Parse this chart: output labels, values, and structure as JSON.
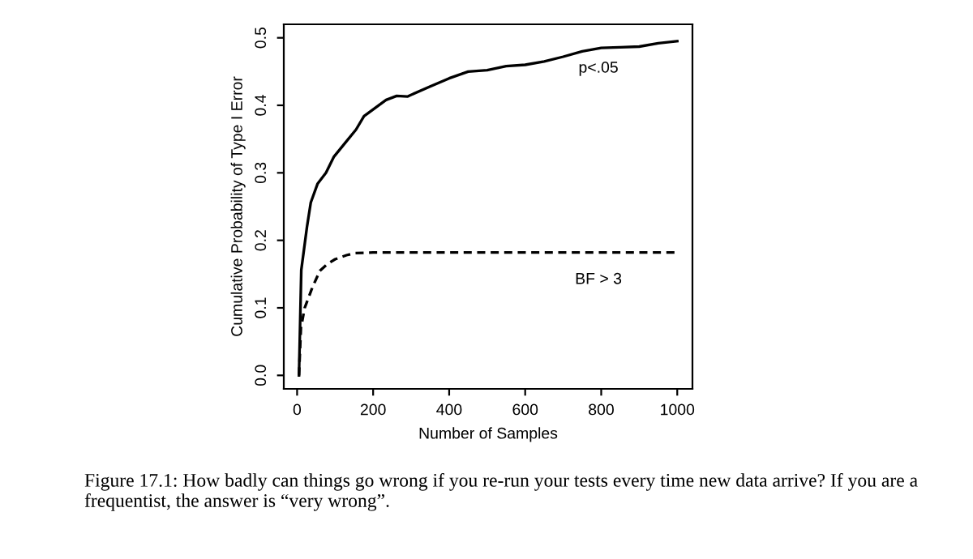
{
  "chart_data": {
    "type": "line",
    "xlabel": "Number of Samples",
    "ylabel": "Cumulative Probability of Type I Error",
    "xlim": [
      -35,
      1040
    ],
    "ylim": [
      -0.02,
      0.52
    ],
    "xticks": [
      0,
      200,
      400,
      600,
      800,
      1000
    ],
    "yticks": [
      {
        "value": 0,
        "label": "0.0"
      },
      0.1,
      0.2,
      0.3,
      0.4,
      0.5
    ],
    "grid": false,
    "series": [
      {
        "name": "p<.05",
        "color": "#000000",
        "line_style": "solid",
        "x": [
          5,
          11,
          26,
          36,
          54,
          76,
          97,
          126,
          155,
          176,
          205,
          234,
          262,
          290,
          350,
          400,
          450,
          500,
          550,
          600,
          650,
          700,
          750,
          800,
          850,
          900,
          950,
          1000
        ],
        "values": [
          0,
          0.156,
          0.22,
          0.256,
          0.284,
          0.3,
          0.324,
          0.344,
          0.364,
          0.384,
          0.396,
          0.408,
          0.414,
          0.413,
          0.428,
          0.44,
          0.45,
          0.452,
          0.458,
          0.46,
          0.465,
          0.472,
          0.48,
          0.485,
          0.486,
          0.487,
          0.492,
          0.495
        ]
      },
      {
        "name": "BF > 3",
        "color": "#000000",
        "line_style": "dashed",
        "x": [
          5,
          10,
          20,
          40,
          60,
          80,
          100,
          130,
          150,
          200,
          1000
        ],
        "values": [
          0,
          0.07,
          0.1,
          0.13,
          0.155,
          0.165,
          0.172,
          0.178,
          0.181,
          0.182,
          0.182
        ]
      }
    ],
    "annotations": [
      "Figure 17.1: How badly can things go wrong if you re-run your tests every time new data arrive? If you are a frequentist, the answer is “very wrong”."
    ]
  }
}
